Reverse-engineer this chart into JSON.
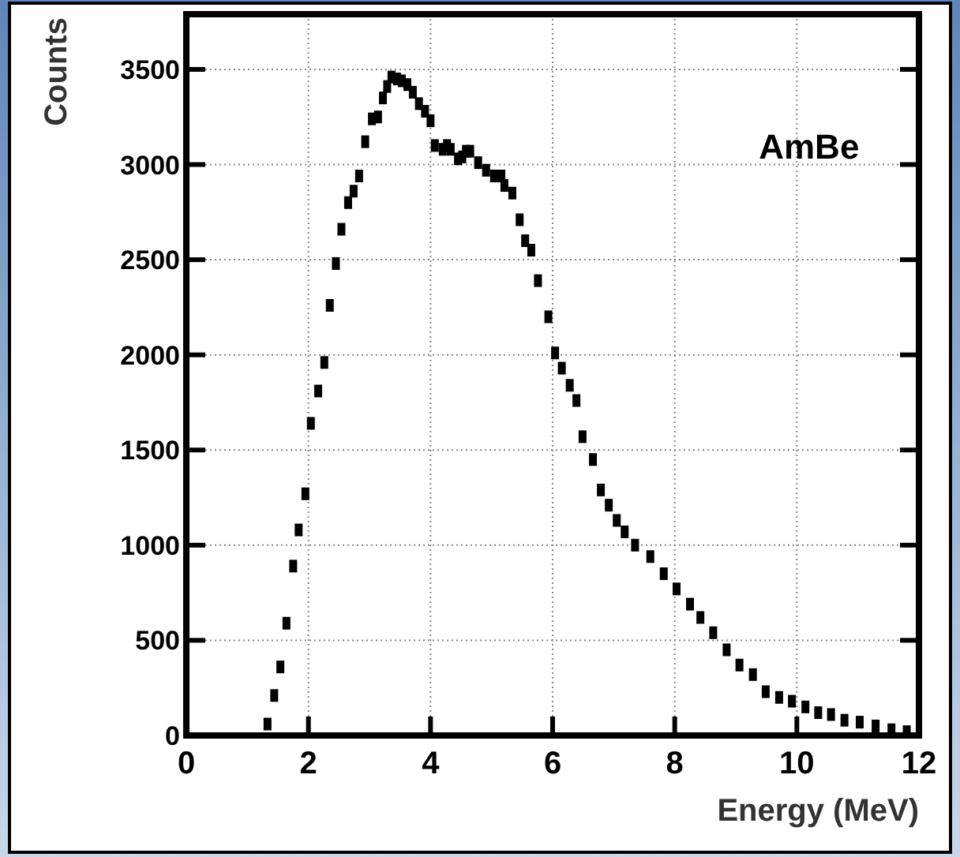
{
  "chart_data": {
    "type": "scatter",
    "xlabel": "Energy (MeV)",
    "ylabel": "Counts",
    "annotations": [
      "AmBe"
    ],
    "xlim": [
      0,
      12
    ],
    "ylim": [
      0,
      3790
    ],
    "xticks": [
      0,
      2,
      4,
      6,
      8,
      10,
      12
    ],
    "yticks": [
      0,
      500,
      1000,
      1500,
      2000,
      2500,
      3000,
      3500
    ],
    "grid": true,
    "marker": "square",
    "series": [
      {
        "color": "#000000",
        "x": [
          1.33,
          1.44,
          1.54,
          1.64,
          1.75,
          1.84,
          1.95,
          2.04,
          2.16,
          2.26,
          2.35,
          2.45,
          2.54,
          2.65,
          2.74,
          2.83,
          2.93,
          3.04,
          3.14,
          3.22,
          3.29,
          3.36,
          3.45,
          3.53,
          3.62,
          3.71,
          3.81,
          3.91,
          4.0,
          4.07,
          4.2,
          4.27,
          4.33,
          4.45,
          4.52,
          4.58,
          4.65,
          4.78,
          4.91,
          5.04,
          5.16,
          5.21,
          5.34,
          5.46,
          5.55,
          5.65,
          5.76,
          5.93,
          6.04,
          6.15,
          6.28,
          6.39,
          6.49,
          6.66,
          6.79,
          6.92,
          7.05,
          7.18,
          7.35,
          7.6,
          7.82,
          8.03,
          8.25,
          8.42,
          8.63,
          8.85,
          9.06,
          9.28,
          9.49,
          9.71,
          9.92,
          10.14,
          10.35,
          10.56,
          10.78,
          11.03,
          11.29,
          11.55,
          11.8
        ],
        "values": [
          60,
          210,
          360,
          590,
          890,
          1080,
          1270,
          1640,
          1810,
          1960,
          2260,
          2480,
          2660,
          2800,
          2860,
          2940,
          3120,
          3240,
          3250,
          3350,
          3410,
          3460,
          3450,
          3440,
          3420,
          3380,
          3320,
          3280,
          3230,
          3100,
          3080,
          3100,
          3080,
          3030,
          3040,
          3070,
          3070,
          3010,
          2970,
          2940,
          2940,
          2890,
          2850,
          2710,
          2600,
          2550,
          2390,
          2200,
          2010,
          1930,
          1840,
          1760,
          1570,
          1450,
          1290,
          1210,
          1130,
          1070,
          1000,
          940,
          850,
          770,
          690,
          620,
          540,
          450,
          370,
          320,
          230,
          200,
          180,
          150,
          120,
          110,
          80,
          70,
          50,
          30,
          20
        ]
      }
    ]
  }
}
